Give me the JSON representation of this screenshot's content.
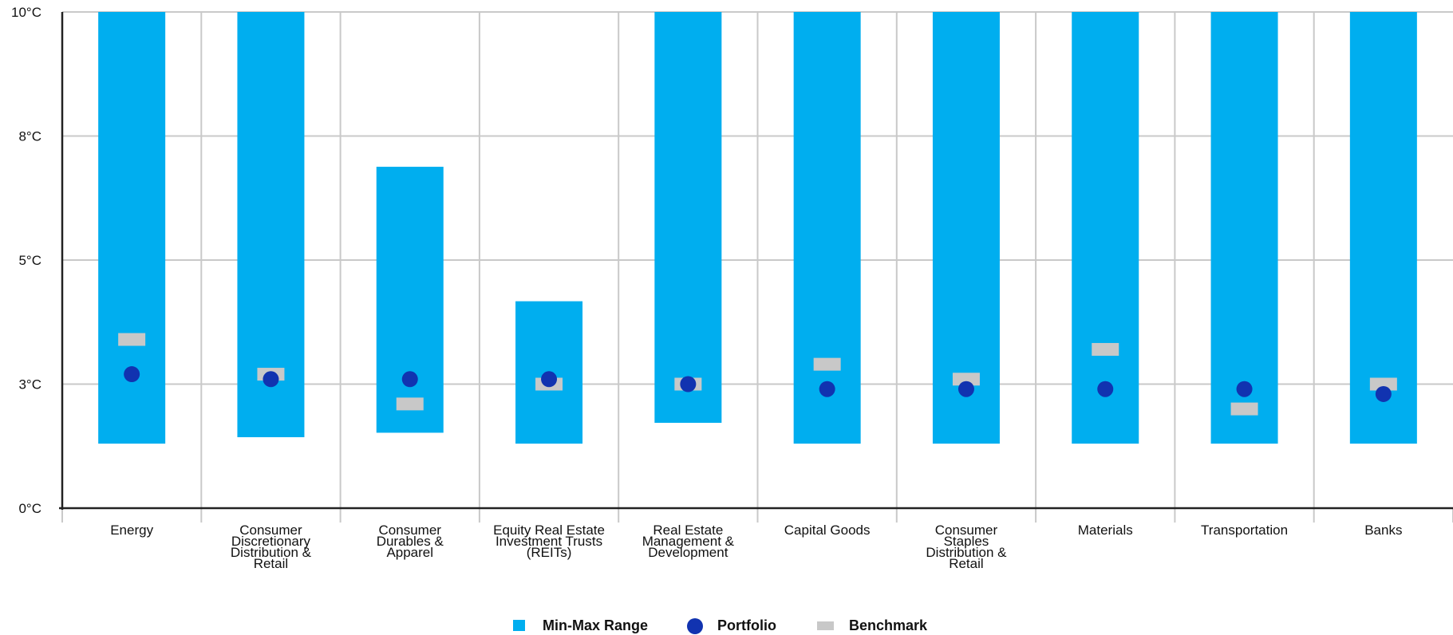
{
  "chart_data": {
    "type": "bar",
    "title": "",
    "xlabel": "",
    "ylabel": "",
    "ylim": [
      0,
      10
    ],
    "y_ticks": [
      {
        "value": 0,
        "label": "0°C"
      },
      {
        "value": 2.5,
        "label": "3°C"
      },
      {
        "value": 5,
        "label": "5°C"
      },
      {
        "value": 7.5,
        "label": "8°C"
      },
      {
        "value": 10,
        "label": "10°C"
      }
    ],
    "grid": true,
    "legend_position": "bottom",
    "categories": [
      "Energy",
      "Consumer Discretionary Distribution & Retail",
      "Consumer Durables & Apparel",
      "Equity Real Estate Investment Trusts (REITs)",
      "Real Estate Management & Development",
      "Capital Goods",
      "Consumer Staples Distribution & Retail",
      "Materials",
      "Transportation",
      "Banks"
    ],
    "category_label_lines": [
      [
        "Energy"
      ],
      [
        "Consumer",
        "Discretionary",
        "Distribution &",
        "Retail"
      ],
      [
        "Consumer",
        "Durables &",
        "Apparel"
      ],
      [
        "Equity Real Estate",
        "Investment Trusts",
        "(REITs)"
      ],
      [
        "Real Estate",
        "Management &",
        "Development"
      ],
      [
        "Capital Goods"
      ],
      [
        "Consumer",
        "Staples",
        "Distribution &",
        "Retail"
      ],
      [
        "Materials"
      ],
      [
        "Transportation"
      ],
      [
        "Banks"
      ]
    ],
    "series": [
      {
        "name": "Min-Max Range",
        "kind": "range-bar",
        "color": "#00AEEF",
        "low": [
          1.3,
          1.43,
          1.52,
          1.3,
          1.72,
          1.3,
          1.3,
          1.3,
          1.3,
          1.3
        ],
        "high": [
          10,
          10,
          6.88,
          4.17,
          10,
          10,
          10,
          10,
          10,
          10
        ]
      },
      {
        "name": "Portfolio",
        "kind": "dot",
        "color": "#1133B0",
        "values": [
          2.7,
          2.6,
          2.6,
          2.6,
          2.5,
          2.4,
          2.4,
          2.4,
          2.4,
          2.3
        ]
      },
      {
        "name": "Benchmark",
        "kind": "marker",
        "color": "#C8C8C8",
        "values": [
          3.4,
          2.7,
          2.1,
          2.5,
          2.5,
          2.9,
          2.6,
          3.2,
          2.0,
          2.5
        ]
      }
    ]
  }
}
